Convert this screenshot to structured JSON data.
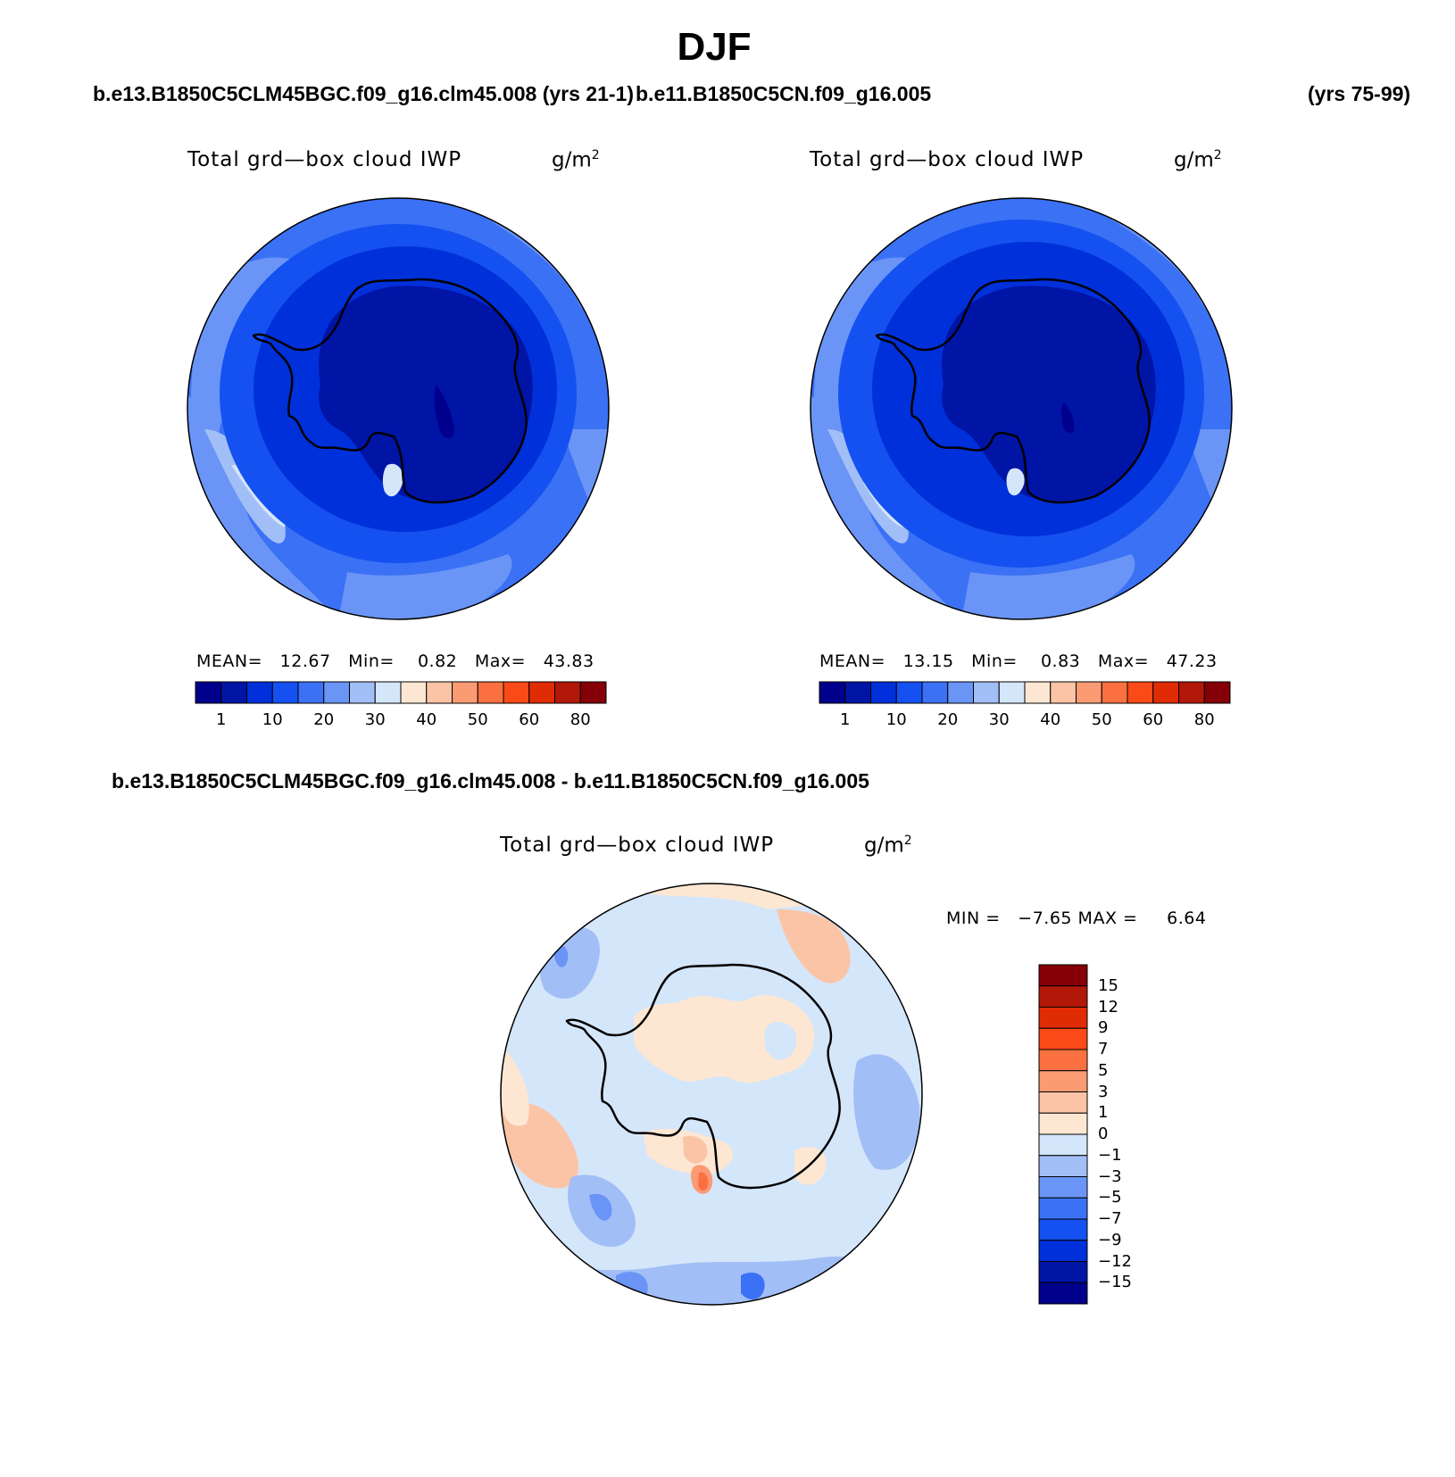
{
  "title": "DJF",
  "panels": [
    {
      "case_name": "b.e13.B1850C5CLM45BGC.f09_g16.clm45.008 (yrs 21-1)",
      "case_years": "",
      "variable": "Total grd—box cloud IWP",
      "units": "g/m",
      "units_exp": "2",
      "stats": "MEAN=   12.67   Min=    0.82   Max=   43.83",
      "colorbar": {
        "colors": [
          "#00008c",
          "#0014a6",
          "#0030d9",
          "#1451f0",
          "#3b71f5",
          "#6a95f6",
          "#a2bef6",
          "#d4e6fa",
          "#fde7d3",
          "#fcc4a6",
          "#fb9b74",
          "#fa7040",
          "#fa4a17",
          "#e02c05",
          "#b11808",
          "#850007"
        ],
        "tick_labels": [
          "1",
          "10",
          "20",
          "30",
          "40",
          "50",
          "60",
          "80"
        ]
      }
    },
    {
      "case_name": "b.e11.B1850C5CN.f09_g16.005",
      "case_years": "(yrs 75-99)",
      "variable": "Total grd—box cloud IWP",
      "units": "g/m",
      "units_exp": "2",
      "stats": "MEAN=   13.15   Min=    0.83   Max=   47.23",
      "colorbar": {
        "colors": [
          "#00008c",
          "#0014a6",
          "#0030d9",
          "#1451f0",
          "#3b71f5",
          "#6a95f6",
          "#a2bef6",
          "#d4e6fa",
          "#fde7d3",
          "#fcc4a6",
          "#fb9b74",
          "#fa7040",
          "#fa4a17",
          "#e02c05",
          "#b11808",
          "#850007"
        ],
        "tick_labels": [
          "1",
          "10",
          "20",
          "30",
          "40",
          "50",
          "60",
          "80"
        ]
      }
    }
  ],
  "difference": {
    "title": "b.e13.B1850C5CLM45BGC.f09_g16.clm45.008 - b.e11.B1850C5CN.f09_g16.005",
    "variable": "Total grd—box cloud IWP",
    "units": "g/m",
    "units_exp": "2",
    "stats": "MIN =   −7.65 MAX =     6.64",
    "colorbar": {
      "colors_top_to_bottom": [
        "#850007",
        "#b11808",
        "#e02c05",
        "#fa4a17",
        "#fa7040",
        "#fb9b74",
        "#fcc4a6",
        "#fde7d3",
        "#d4e6fa",
        "#a2bef6",
        "#6a95f6",
        "#3b71f5",
        "#1451f0",
        "#0030d9",
        "#0014a6",
        "#00008c"
      ],
      "tick_labels": [
        "15",
        "12",
        "9",
        "7",
        "5",
        "3",
        "1",
        "0",
        "−1",
        "−3",
        "−5",
        "−7",
        "−9",
        "−12",
        "−15"
      ]
    }
  }
}
